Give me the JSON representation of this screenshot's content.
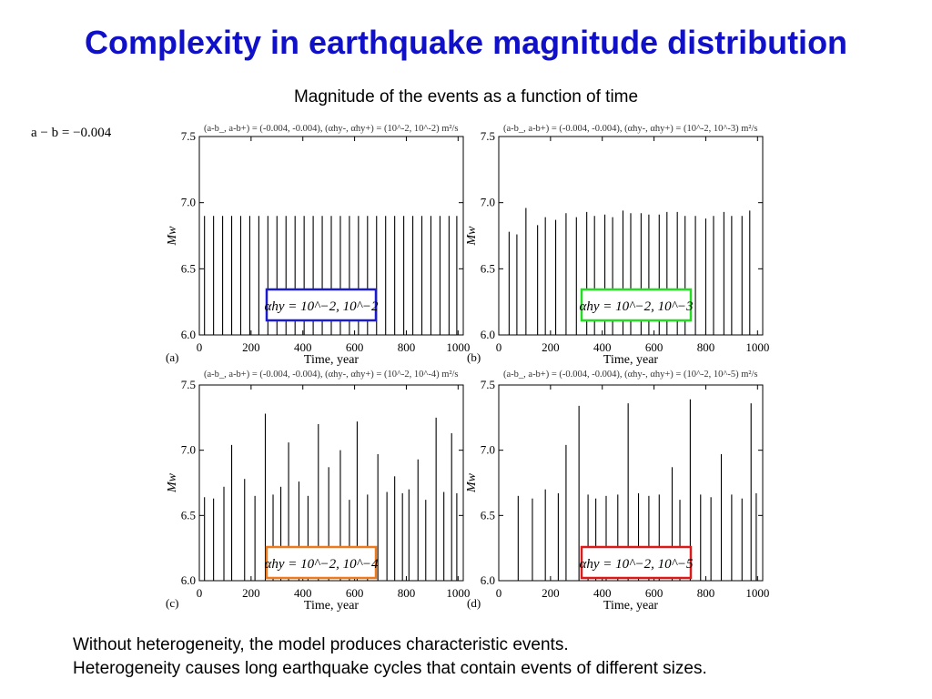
{
  "slide": {
    "title": "Complexity in earthquake magnitude distribution",
    "subtitle": "Magnitude of the events as a function of time",
    "equation": "a − b = −0.004",
    "footer": [
      "Without heterogeneity, the model produces characteristic events.",
      "Heterogeneity causes long earthquake cycles that contain events of different sizes."
    ]
  },
  "colors": {
    "title": "#1010c8",
    "box_a": "#1a1ad0",
    "box_b": "#22dd22",
    "box_c": "#ee7a1e",
    "box_d": "#dd1a1a"
  },
  "chart_data": [
    {
      "type": "bar",
      "panel": "(a)",
      "title": "(a-b_, a-b+) = (-0.004, -0.004), (αhy-, αhy+) = (10^-2, 10^-2) m²/s",
      "xlabel": "Time, year",
      "ylabel": "Mw",
      "xlim": [
        0,
        1000
      ],
      "ylim": [
        6.0,
        7.5
      ],
      "xticks": [
        "0",
        "200",
        "400",
        "600",
        "800",
        "1000"
      ],
      "yticks": [
        "6.0",
        "6.5",
        "7.0",
        "7.5"
      ],
      "legend": "αhy = 10^−2, 10^−2",
      "events": [
        [
          20,
          6.9
        ],
        [
          55,
          6.9
        ],
        [
          90,
          6.9
        ],
        [
          125,
          6.9
        ],
        [
          160,
          6.9
        ],
        [
          195,
          6.9
        ],
        [
          230,
          6.9
        ],
        [
          265,
          6.9
        ],
        [
          300,
          6.9
        ],
        [
          335,
          6.9
        ],
        [
          370,
          6.9
        ],
        [
          405,
          6.9
        ],
        [
          440,
          6.9
        ],
        [
          475,
          6.9
        ],
        [
          510,
          6.9
        ],
        [
          545,
          6.9
        ],
        [
          580,
          6.9
        ],
        [
          615,
          6.9
        ],
        [
          650,
          6.9
        ],
        [
          685,
          6.9
        ],
        [
          720,
          6.9
        ],
        [
          755,
          6.9
        ],
        [
          790,
          6.9
        ],
        [
          825,
          6.9
        ],
        [
          860,
          6.9
        ],
        [
          895,
          6.9
        ],
        [
          930,
          6.9
        ],
        [
          965,
          6.9
        ],
        [
          995,
          6.9
        ]
      ]
    },
    {
      "type": "bar",
      "panel": "(b)",
      "title": "(a-b_, a-b+) = (-0.004, -0.004), (αhy-, αhy+) = (10^-2, 10^-3) m²/s",
      "xlabel": "Time, year",
      "ylabel": "Mw",
      "xlim": [
        0,
        1000
      ],
      "ylim": [
        6.0,
        7.5
      ],
      "xticks": [
        "0",
        "200",
        "400",
        "600",
        "800",
        "1000"
      ],
      "yticks": [
        "6.0",
        "6.5",
        "7.0",
        "7.5"
      ],
      "legend": "αhy = 10^−2, 10^−3",
      "events": [
        [
          40,
          6.78
        ],
        [
          70,
          6.76
        ],
        [
          105,
          6.96
        ],
        [
          150,
          6.83
        ],
        [
          180,
          6.89
        ],
        [
          220,
          6.87
        ],
        [
          260,
          6.92
        ],
        [
          300,
          6.89
        ],
        [
          340,
          6.93
        ],
        [
          370,
          6.9
        ],
        [
          410,
          6.91
        ],
        [
          440,
          6.89
        ],
        [
          480,
          6.94
        ],
        [
          510,
          6.92
        ],
        [
          550,
          6.92
        ],
        [
          580,
          6.91
        ],
        [
          620,
          6.91
        ],
        [
          650,
          6.93
        ],
        [
          690,
          6.93
        ],
        [
          720,
          6.9
        ],
        [
          760,
          6.9
        ],
        [
          800,
          6.88
        ],
        [
          830,
          6.9
        ],
        [
          870,
          6.93
        ],
        [
          900,
          6.9
        ],
        [
          940,
          6.9
        ],
        [
          970,
          6.94
        ]
      ]
    },
    {
      "type": "bar",
      "panel": "(c)",
      "title": "(a-b_, a-b+) = (-0.004, -0.004), (αhy-, αhy+) = (10^-2, 10^-4) m²/s",
      "xlabel": "Time, year",
      "ylabel": "Mw",
      "xlim": [
        0,
        1000
      ],
      "ylim": [
        6.0,
        7.5
      ],
      "xticks": [
        "0",
        "200",
        "400",
        "600",
        "800",
        "1000"
      ],
      "yticks": [
        "6.0",
        "6.5",
        "7.0",
        "7.5"
      ],
      "legend": "αhy = 10^−2, 10^−4",
      "events": [
        [
          20,
          6.64
        ],
        [
          55,
          6.63
        ],
        [
          95,
          6.72
        ],
        [
          125,
          7.04
        ],
        [
          175,
          6.78
        ],
        [
          215,
          6.65
        ],
        [
          255,
          7.28
        ],
        [
          285,
          6.66
        ],
        [
          315,
          6.72
        ],
        [
          345,
          7.06
        ],
        [
          385,
          6.76
        ],
        [
          420,
          6.65
        ],
        [
          460,
          7.2
        ],
        [
          500,
          6.87
        ],
        [
          545,
          7.0
        ],
        [
          580,
          6.62
        ],
        [
          610,
          7.22
        ],
        [
          650,
          6.66
        ],
        [
          690,
          6.97
        ],
        [
          725,
          6.68
        ],
        [
          755,
          6.8
        ],
        [
          785,
          6.67
        ],
        [
          810,
          6.7
        ],
        [
          845,
          6.93
        ],
        [
          875,
          6.62
        ],
        [
          915,
          7.25
        ],
        [
          945,
          6.68
        ],
        [
          975,
          7.13
        ],
        [
          995,
          6.67
        ]
      ]
    },
    {
      "type": "bar",
      "panel": "(d)",
      "title": "(a-b_, a-b+) = (-0.004, -0.004), (αhy-, αhy+) = (10^-2, 10^-5) m²/s",
      "xlabel": "Time, year",
      "ylabel": "Mw",
      "xlim": [
        0,
        1000
      ],
      "ylim": [
        6.0,
        7.5
      ],
      "xticks": [
        "0",
        "200",
        "400",
        "600",
        "800",
        "1000"
      ],
      "yticks": [
        "6.0",
        "6.5",
        "7.0",
        "7.5"
      ],
      "legend": "αhy = 10^−2, 10^−5",
      "events": [
        [
          75,
          6.65
        ],
        [
          130,
          6.63
        ],
        [
          180,
          6.7
        ],
        [
          230,
          6.67
        ],
        [
          260,
          7.04
        ],
        [
          310,
          7.34
        ],
        [
          345,
          6.66
        ],
        [
          375,
          6.63
        ],
        [
          415,
          6.65
        ],
        [
          460,
          6.66
        ],
        [
          500,
          7.36
        ],
        [
          540,
          6.67
        ],
        [
          580,
          6.65
        ],
        [
          620,
          6.66
        ],
        [
          670,
          6.87
        ],
        [
          700,
          6.62
        ],
        [
          740,
          7.39
        ],
        [
          780,
          6.66
        ],
        [
          820,
          6.64
        ],
        [
          860,
          6.97
        ],
        [
          900,
          6.66
        ],
        [
          940,
          6.63
        ],
        [
          975,
          7.36
        ],
        [
          995,
          6.67
        ]
      ]
    }
  ]
}
